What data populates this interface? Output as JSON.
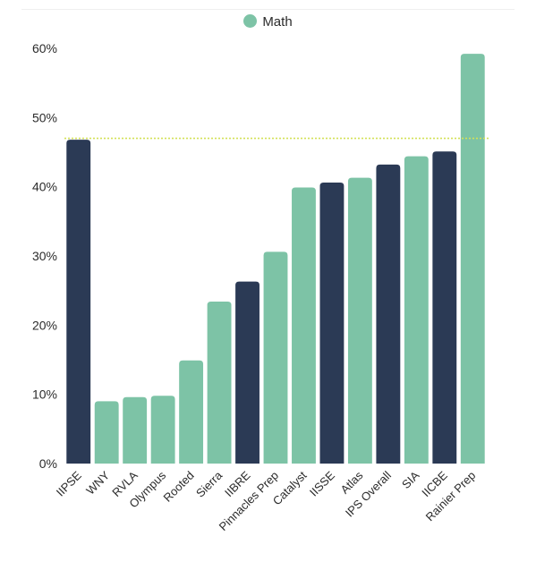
{
  "chart_data": {
    "type": "bar",
    "categories": [
      "IIPSE",
      "WNY",
      "RVLA",
      "Olympus",
      "Rooted",
      "Sierra",
      "IIBRE",
      "Pinnacles Prep",
      "Catalyst",
      "IISSE",
      "Atlas",
      "IPS Overall",
      "SIA",
      "IICBE",
      "Rainier Prep"
    ],
    "series": [
      {
        "name": "Math",
        "values": [
          46.8,
          9.0,
          9.6,
          9.8,
          14.9,
          23.4,
          26.3,
          30.6,
          39.9,
          40.6,
          41.3,
          43.2,
          44.4,
          45.1,
          59.2
        ],
        "highlighted": [
          true,
          false,
          false,
          false,
          false,
          false,
          true,
          false,
          false,
          true,
          false,
          true,
          false,
          true,
          false
        ]
      }
    ],
    "ylim": [
      0,
      60
    ],
    "yticks": [
      "0%",
      "10%",
      "20%",
      "30%",
      "40%",
      "50%",
      "60%"
    ],
    "reference_line": {
      "value": 47.0,
      "style": "dotted",
      "color": "#d4e157"
    },
    "legend_position": "top-center",
    "grid": false,
    "colors": {
      "bar": "#7dc3a6",
      "highlight": "#2b3a55"
    }
  }
}
